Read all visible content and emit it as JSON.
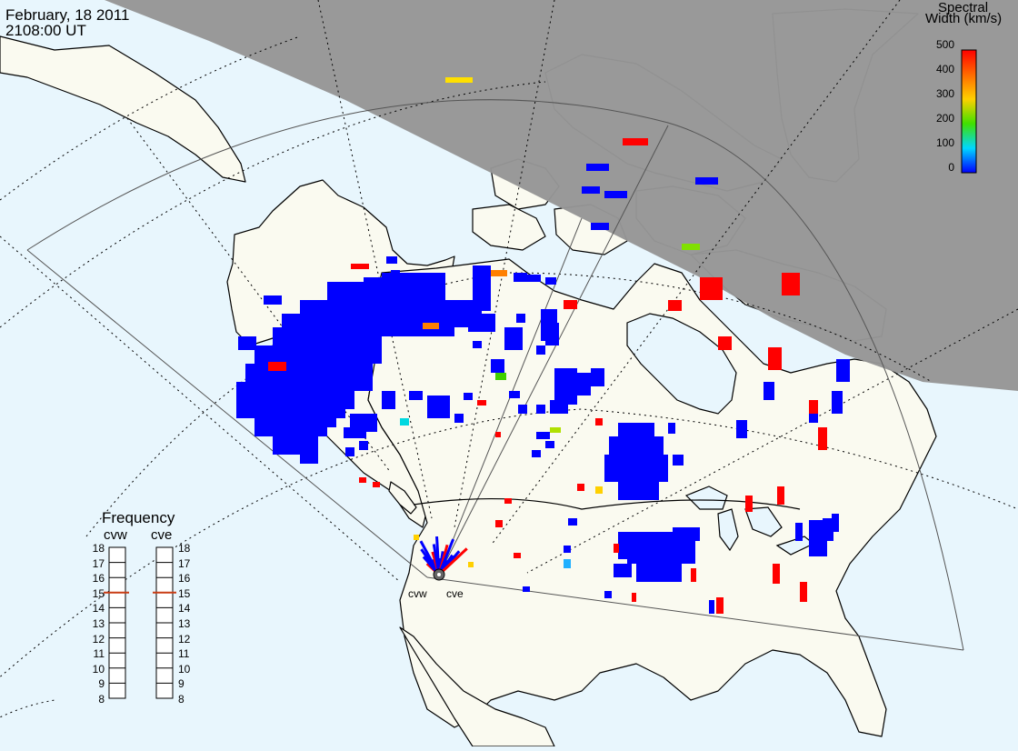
{
  "header": {
    "date": "February, 18 2011",
    "time": "2108:00 UT"
  },
  "colorbar": {
    "title_line1": "Spectral",
    "title_line2": "Width (km/s)",
    "ticks": [
      "500",
      "400",
      "300",
      "200",
      "100",
      "0"
    ],
    "colors": [
      "#ff0000",
      "#ff8000",
      "#ffd000",
      "#40e000",
      "#00e0e0",
      "#0000ff"
    ]
  },
  "frequency_panel": {
    "title": "Frequency",
    "radars": [
      "cvw",
      "cve"
    ],
    "ticks": [
      "18",
      "17",
      "16",
      "15",
      "14",
      "13",
      "12",
      "11",
      "10",
      "9",
      "8"
    ],
    "cvw_frequency": 15,
    "cve_frequency": 15
  },
  "map": {
    "radar_labels": [
      "cvw",
      "cve"
    ],
    "colors": {
      "ocean": "#e8f6fd",
      "land": "#fafaf0",
      "night": "#969696",
      "echo_low": "#0000ff",
      "echo_high": "#ff0000"
    }
  }
}
